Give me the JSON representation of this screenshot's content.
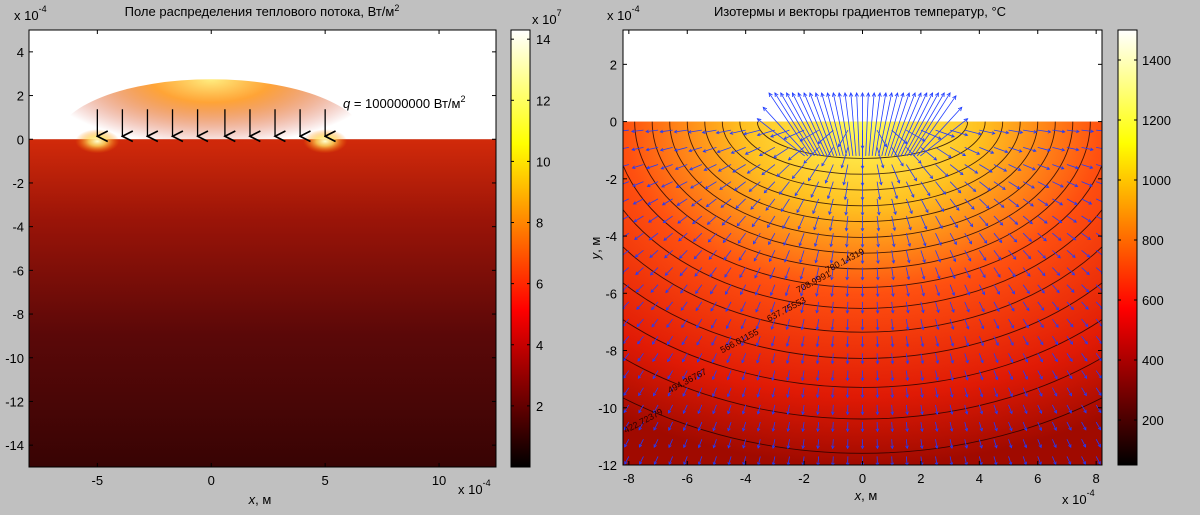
{
  "chart_data": [
    {
      "type": "heatmap",
      "title": "Поле распределения теплового потока, Вт/м",
      "title_sup": "2",
      "xlabel_var": "x",
      "xlabel_unit": ", м",
      "x_exponent": "x 10",
      "x_exponent_power": "-4",
      "y_exponent": "x 10",
      "y_exponent_power": "-4",
      "xlim": [
        -8,
        12.5
      ],
      "ylim": [
        -15,
        5
      ],
      "x_ticks": [
        -5,
        0,
        5,
        10
      ],
      "y_ticks": [
        4,
        2,
        0,
        -2,
        -4,
        -6,
        -8,
        -10,
        -12,
        -14
      ],
      "colorbar": {
        "ticks": [
          2,
          4,
          6,
          8,
          10,
          12,
          14
        ],
        "range": [
          0,
          14.3
        ],
        "exponent": "x 10",
        "exponent_power": "7"
      },
      "annotation": {
        "var": "q",
        "text": " = 100000000 Вт/м",
        "sup": "2"
      },
      "heat_source": {
        "x_min": -5,
        "x_max": 5,
        "y": 0
      },
      "arrows_x": [
        -5,
        -3.9,
        -2.8,
        -1.7,
        -0.6,
        0.6,
        1.7,
        2.8,
        3.9,
        5
      ],
      "colormap": "hot"
    },
    {
      "type": "heatmap",
      "title": "Изотермы и векторы градиентов температур, °С",
      "xlabel_var": "x",
      "xlabel_unit": ", м",
      "ylabel_var": "y",
      "ylabel_unit": ", м",
      "x_exponent": "x 10",
      "x_exponent_power": "-4",
      "y_exponent": "x 10",
      "y_exponent_power": "-4",
      "xlim": [
        -8.2,
        8.2
      ],
      "ylim": [
        -12,
        3.2
      ],
      "x_ticks": [
        -8,
        -6,
        -4,
        -2,
        0,
        2,
        4,
        6,
        8
      ],
      "y_ticks": [
        2,
        0,
        -2,
        -4,
        -6,
        -8,
        -10,
        -12
      ],
      "colorbar": {
        "ticks": [
          200,
          400,
          600,
          800,
          1000,
          1200,
          1400
        ],
        "range": [
          50,
          1500
        ]
      },
      "isotherm_labels": [
        {
          "text": "780.14319",
          "x": -1.2,
          "y": -5.3
        },
        {
          "text": "708.9991",
          "x": -2.2,
          "y": -6.0
        },
        {
          "text": "637.75553",
          "x": -3.2,
          "y": -7.0
        },
        {
          "text": "566.01155",
          "x": -4.8,
          "y": -8.1
        },
        {
          "text": "494.36767",
          "x": -6.6,
          "y": -9.5
        },
        {
          "text": "422.72379",
          "x": -8.1,
          "y": -10.9
        }
      ],
      "vector_color": "#1f3cff",
      "colormap": "hot"
    }
  ]
}
